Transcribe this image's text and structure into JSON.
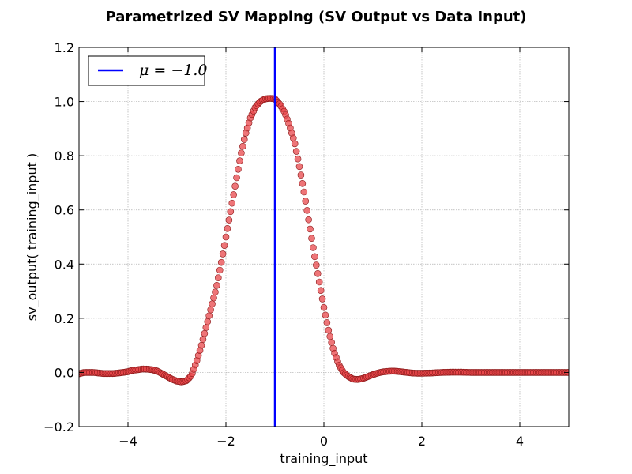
{
  "chart_data": {
    "type": "scatter",
    "title": "Parametrized SV Mapping (SV Output vs Data Input)",
    "xlabel": "training_input",
    "ylabel": "sv_output( training_input )",
    "xlim": [
      -5,
      5
    ],
    "ylim": [
      -0.2,
      1.2
    ],
    "xticks": [
      -4,
      -2,
      0,
      2,
      4
    ],
    "xtick_labels": [
      "−4",
      "−2",
      "0",
      "2",
      "4"
    ],
    "yticks": [
      -0.2,
      0.0,
      0.2,
      0.4,
      0.6,
      0.8,
      1.0,
      1.2
    ],
    "ytick_labels": [
      "−0.2",
      "0.0",
      "0.2",
      "0.4",
      "0.6",
      "0.8",
      "1.0",
      "1.2"
    ],
    "grid": true,
    "legend_position": "top-left",
    "series": [
      {
        "kind": "scatter",
        "color": "#e8474b",
        "edge_color": "#8b1a1a",
        "x": [
          -5.0,
          -4.9,
          -4.8,
          -4.7,
          -4.6,
          -4.5,
          -4.4,
          -4.3,
          -4.2,
          -4.1,
          -4.0,
          -3.9,
          -3.8,
          -3.7,
          -3.6,
          -3.5,
          -3.4,
          -3.3,
          -3.2,
          -3.1,
          -3.0,
          -2.9,
          -2.8,
          -2.7,
          -2.6,
          -2.5,
          -2.4,
          -2.3,
          -2.2,
          -2.1,
          -2.0,
          -1.9,
          -1.8,
          -1.7,
          -1.6,
          -1.5,
          -1.4,
          -1.3,
          -1.2,
          -1.1,
          -1.0,
          -0.9,
          -0.8,
          -0.7,
          -0.6,
          -0.5,
          -0.4,
          -0.3,
          -0.2,
          -0.1,
          0.0,
          0.1,
          0.2,
          0.3,
          0.4,
          0.5,
          0.6,
          0.7,
          0.8,
          0.9,
          1.0,
          1.1,
          1.2,
          1.3,
          1.4,
          1.5,
          1.6,
          1.7,
          1.8,
          1.9,
          2.0,
          2.2,
          2.4,
          2.6,
          2.8,
          3.0,
          3.2,
          3.4,
          3.6,
          3.8,
          4.0,
          4.2,
          4.4,
          4.6,
          4.8,
          5.0
        ],
        "y": [
          -0.005,
          0.0,
          0.0,
          0.0,
          -0.002,
          -0.004,
          -0.004,
          -0.004,
          -0.002,
          0.0,
          0.003,
          0.008,
          0.01,
          0.013,
          0.012,
          0.01,
          0.005,
          -0.005,
          -0.015,
          -0.025,
          -0.032,
          -0.035,
          -0.03,
          -0.01,
          0.04,
          0.1,
          0.17,
          0.24,
          0.31,
          0.4,
          0.5,
          0.6,
          0.7,
          0.8,
          0.88,
          0.94,
          0.98,
          1.0,
          1.01,
          1.012,
          1.01,
          0.99,
          0.96,
          0.91,
          0.85,
          0.76,
          0.66,
          0.55,
          0.44,
          0.34,
          0.24,
          0.15,
          0.08,
          0.03,
          0.0,
          -0.015,
          -0.025,
          -0.026,
          -0.022,
          -0.015,
          -0.008,
          -0.002,
          0.002,
          0.004,
          0.005,
          0.004,
          0.002,
          0.0,
          -0.002,
          -0.003,
          -0.003,
          -0.002,
          0.0,
          0.001,
          0.001,
          0.0,
          0.0,
          0.0,
          0.0,
          0.0,
          0.0,
          0.0,
          0.0,
          0.0,
          0.0,
          0.0
        ]
      },
      {
        "kind": "vline",
        "name": "μ = −1.0",
        "color": "#0000ff",
        "x": -1.0
      }
    ]
  }
}
